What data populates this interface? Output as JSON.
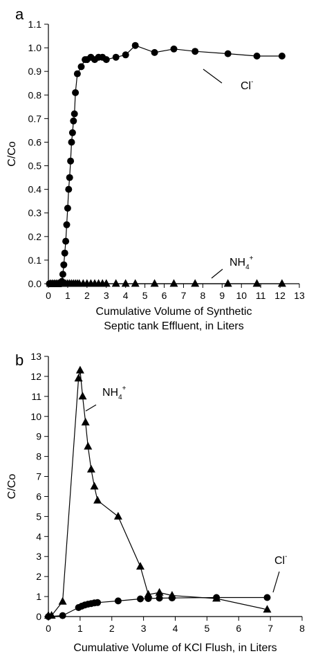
{
  "chart_data": [
    {
      "panel_label": "a",
      "type": "scatter",
      "xlabel_line1": "Cumulative Volume of Synthetic",
      "xlabel_line2": "Septic tank Effluent, in Liters",
      "ylabel": "C/Co",
      "xlim": [
        0,
        13
      ],
      "ylim": [
        0,
        1.1
      ],
      "xticks": [
        "0",
        "1",
        "2",
        "3",
        "4",
        "5",
        "6",
        "7",
        "8",
        "9",
        "10",
        "11",
        "12",
        "13"
      ],
      "yticks": [
        "0.0",
        "0.1",
        "0.2",
        "0.3",
        "0.4",
        "0.5",
        "0.6",
        "0.7",
        "0.8",
        "0.9",
        "1.0",
        "1.1"
      ],
      "grid": false,
      "series": [
        {
          "name": "Cl-",
          "label": "Cl",
          "label_sup": "-",
          "marker": "circle",
          "x": [
            0.05,
            0.1,
            0.15,
            0.2,
            0.25,
            0.3,
            0.35,
            0.4,
            0.45,
            0.5,
            0.55,
            0.6,
            0.65,
            0.7,
            0.75,
            0.8,
            0.85,
            0.9,
            0.95,
            1.0,
            1.05,
            1.1,
            1.15,
            1.2,
            1.25,
            1.3,
            1.35,
            1.4,
            1.5,
            1.7,
            1.9,
            2.0,
            2.2,
            2.4,
            2.6,
            2.8,
            3.0,
            3.5,
            4.0,
            4.5,
            5.5,
            6.5,
            7.6,
            9.3,
            10.8,
            12.1
          ],
          "y": [
            0,
            0,
            0,
            0,
            0,
            0,
            0,
            0,
            0,
            0,
            0,
            0,
            0,
            0.01,
            0.04,
            0.08,
            0.13,
            0.18,
            0.25,
            0.32,
            0.4,
            0.45,
            0.52,
            0.6,
            0.64,
            0.69,
            0.72,
            0.81,
            0.89,
            0.92,
            0.95,
            0.95,
            0.96,
            0.95,
            0.96,
            0.96,
            0.95,
            0.96,
            0.97,
            1.01,
            0.98,
            0.995,
            0.985,
            0.975,
            0.965,
            0.965
          ]
        },
        {
          "name": "NH4+",
          "label": "NH",
          "label_sub": "4",
          "label_sup": "+",
          "marker": "triangle",
          "x": [
            0.1,
            0.2,
            0.3,
            0.4,
            0.5,
            0.6,
            0.7,
            0.8,
            0.9,
            1.0,
            1.1,
            1.2,
            1.3,
            1.4,
            1.5,
            1.6,
            1.8,
            2.0,
            2.2,
            2.4,
            2.6,
            2.8,
            3.0,
            3.5,
            4.0,
            4.5,
            5.5,
            6.5,
            7.6,
            9.3,
            10.8,
            12.1
          ],
          "y": [
            0,
            0,
            0,
            0,
            0,
            0,
            0,
            0,
            0,
            0,
            0,
            0,
            0,
            0,
            0,
            0,
            0,
            0,
            0,
            0,
            0,
            0,
            0,
            0,
            0,
            0,
            0,
            0,
            0,
            0,
            0,
            0
          ]
        }
      ]
    },
    {
      "panel_label": "b",
      "type": "scatter",
      "xlabel_line1": "Cumulative Volume of KCl Flush, in Liters",
      "xlabel_line2": "",
      "ylabel": "C/Co",
      "xlim": [
        0,
        8
      ],
      "ylim": [
        0,
        13
      ],
      "xticks": [
        "0",
        "1",
        "2",
        "3",
        "4",
        "5",
        "6",
        "7",
        "8"
      ],
      "yticks": [
        "0",
        "1",
        "2",
        "3",
        "4",
        "5",
        "6",
        "7",
        "8",
        "9",
        "10",
        "11",
        "12",
        "13"
      ],
      "grid": false,
      "series": [
        {
          "name": "NH4+",
          "label": "NH",
          "label_sub": "4",
          "label_sup": "+",
          "marker": "triangle",
          "x": [
            0.0,
            0.1,
            0.45,
            0.95,
            1.0,
            1.08,
            1.17,
            1.25,
            1.35,
            1.45,
            1.55,
            2.2,
            2.9,
            3.15,
            3.5,
            3.9,
            5.3,
            6.9
          ],
          "y": [
            0.05,
            0.05,
            0.75,
            11.9,
            12.3,
            11.0,
            9.7,
            8.5,
            7.35,
            6.5,
            5.8,
            5.0,
            2.5,
            1.1,
            1.2,
            1.05,
            0.9,
            0.35
          ]
        },
        {
          "name": "Cl-",
          "label": "Cl",
          "label_sup": "-",
          "marker": "circle",
          "x": [
            0.0,
            0.45,
            0.95,
            1.05,
            1.15,
            1.25,
            1.35,
            1.45,
            1.55,
            2.2,
            2.9,
            3.15,
            3.5,
            3.9,
            5.3,
            6.9
          ],
          "y": [
            0.0,
            0.05,
            0.45,
            0.52,
            0.58,
            0.62,
            0.65,
            0.68,
            0.7,
            0.78,
            0.88,
            0.9,
            0.92,
            0.93,
            0.95,
            0.95
          ]
        }
      ]
    }
  ]
}
